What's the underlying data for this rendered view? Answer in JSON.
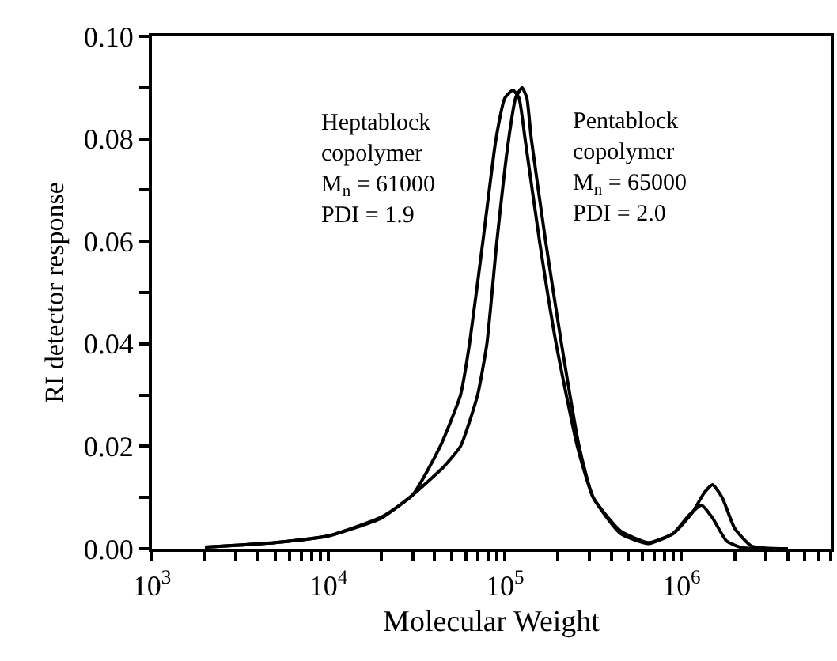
{
  "chart_data": {
    "type": "line",
    "xlabel": "Molecular Weight",
    "ylabel": "RI detector response",
    "log": "x",
    "marker": "none",
    "line_style": "solid",
    "xlim": [
      1000,
      7000000
    ],
    "xticks": [
      {
        "value": 1000,
        "label": "10$^{3}$"
      },
      {
        "value": 2000,
        "label": null
      },
      {
        "value": 3000,
        "label": null
      },
      {
        "value": 4000,
        "label": null
      },
      {
        "value": 5000,
        "label": null
      },
      {
        "value": 6000,
        "label": null
      },
      {
        "value": 7000,
        "label": null
      },
      {
        "value": 8000,
        "label": null
      },
      {
        "value": 9000,
        "label": null
      },
      {
        "value": 10000,
        "label": "10$^{4}$"
      },
      {
        "value": 20000,
        "label": null
      },
      {
        "value": 30000,
        "label": null
      },
      {
        "value": 40000,
        "label": null
      },
      {
        "value": 50000,
        "label": null
      },
      {
        "value": 60000,
        "label": null
      },
      {
        "value": 70000,
        "label": null
      },
      {
        "value": 80000,
        "label": null
      },
      {
        "value": 90000,
        "label": null
      },
      {
        "value": 100000,
        "label": "10$^{5}$"
      },
      {
        "value": 200000,
        "label": null
      },
      {
        "value": 300000,
        "label": null
      },
      {
        "value": 400000,
        "label": null
      },
      {
        "value": 500000,
        "label": null
      },
      {
        "value": 600000,
        "label": null
      },
      {
        "value": 700000,
        "label": null
      },
      {
        "value": 800000,
        "label": null
      },
      {
        "value": 900000,
        "label": null
      },
      {
        "value": 1000000,
        "label": "10$^{6}$"
      },
      {
        "value": 2000000,
        "label": null
      },
      {
        "value": 3000000,
        "label": null
      },
      {
        "value": 4000000,
        "label": null
      },
      {
        "value": 5000000,
        "label": null
      },
      {
        "value": 6000000,
        "label": null
      },
      {
        "value": 7000000,
        "label": null
      }
    ],
    "ylim": [
      0,
      0.1
    ],
    "yticks": [
      {
        "value": 0,
        "label": "0.00"
      },
      {
        "value": 0.01,
        "label": null
      },
      {
        "value": 0.02,
        "label": "0.02"
      },
      {
        "value": 0.03,
        "label": null
      },
      {
        "value": 0.04,
        "label": "0.04"
      },
      {
        "value": 0.05,
        "label": null
      },
      {
        "value": 0.06,
        "label": "0.06"
      },
      {
        "value": 0.07,
        "label": null
      },
      {
        "value": 0.08,
        "label": "0.08"
      },
      {
        "value": 0.09,
        "label": null
      },
      {
        "value": 0.1,
        "label": "0.10"
      }
    ],
    "series": [
      {
        "color": "#000000",
        "x": [
          2000,
          5000,
          10000,
          20000,
          30000,
          43000,
          56000,
          63000,
          75000,
          89000,
          100000,
          111000,
          120000,
          130000,
          157000,
          195000,
          257000,
          316000,
          450000,
          650000,
          900000,
          1100000,
          1300000,
          1500000,
          1800000,
          2200000,
          4000000
        ],
        "values": [
          0.0003,
          0.0012,
          0.0025,
          0.0062,
          0.0105,
          0.02,
          0.03,
          0.04,
          0.06,
          0.08,
          0.088,
          0.0895,
          0.088,
          0.08,
          0.06,
          0.04,
          0.02,
          0.01,
          0.003,
          0.001,
          0.003,
          0.0065,
          0.0085,
          0.006,
          0.0015,
          0.0002,
          0.0
        ]
      },
      {
        "color": "#000000",
        "x": [
          2000,
          5000,
          10000,
          20000,
          30000,
          45000,
          56000,
          70000,
          79000,
          90000,
          105000,
          115000,
          125000,
          133000,
          141000,
          170000,
          209000,
          263000,
          316000,
          450000,
          650000,
          900000,
          1150000,
          1350000,
          1500000,
          1700000,
          2000000,
          2500000,
          4000000
        ],
        "values": [
          0.0003,
          0.0012,
          0.0025,
          0.006,
          0.0105,
          0.016,
          0.02,
          0.03,
          0.04,
          0.06,
          0.08,
          0.088,
          0.09,
          0.088,
          0.08,
          0.06,
          0.04,
          0.02,
          0.01,
          0.0035,
          0.0012,
          0.003,
          0.007,
          0.011,
          0.0125,
          0.01,
          0.004,
          0.0005,
          0.0
        ]
      }
    ],
    "annotations": [
      "Heptablock\ncopolymer\nM$_{n}$ = 61000\nPDI = 1.9",
      "Pentablock\ncopolymer\nM$_{n}$ = 65000\nPDI = 2.0"
    ]
  }
}
